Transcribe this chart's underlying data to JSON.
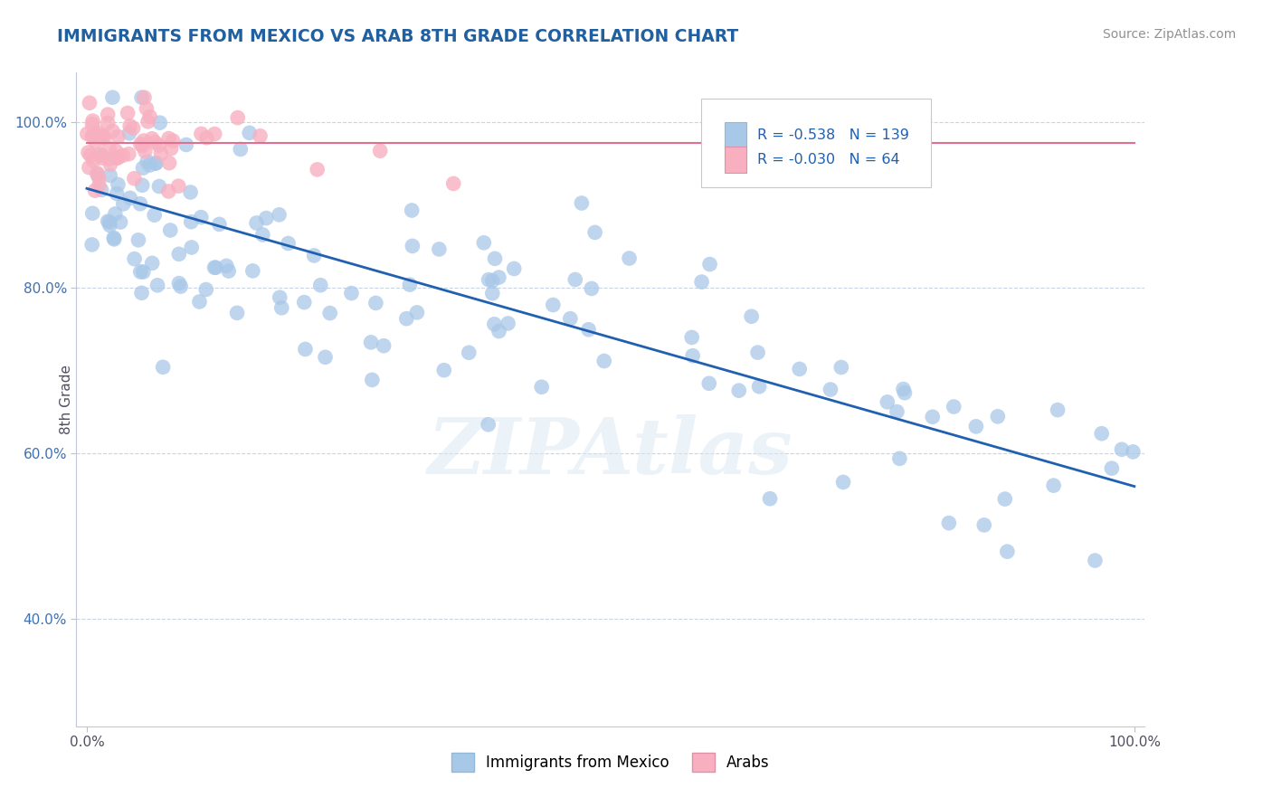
{
  "title": "IMMIGRANTS FROM MEXICO VS ARAB 8TH GRADE CORRELATION CHART",
  "source_text": "Source: ZipAtlas.com",
  "ylabel": "8th Grade",
  "xlim": [
    -0.01,
    1.01
  ],
  "ylim": [
    0.27,
    1.06
  ],
  "xtick_positions": [
    0.0,
    1.0
  ],
  "xtick_labels": [
    "0.0%",
    "100.0%"
  ],
  "ytick_vals": [
    0.4,
    0.6,
    0.8,
    1.0
  ],
  "ytick_labels": [
    "40.0%",
    "60.0%",
    "80.0%",
    "100.0%"
  ],
  "legend_labels": [
    "Immigrants from Mexico",
    "Arabs"
  ],
  "blue_R": -0.538,
  "blue_N": 139,
  "pink_R": -0.03,
  "pink_N": 64,
  "blue_color": "#a8c8e8",
  "blue_edge_color": "#a8c8e8",
  "pink_color": "#f8b0c0",
  "pink_edge_color": "#f8b0c0",
  "blue_line_color": "#2060b0",
  "pink_line_color": "#e07090",
  "marker_size": 12,
  "blue_trendline_x": [
    0.0,
    1.0
  ],
  "blue_trendline_y": [
    0.92,
    0.56
  ],
  "pink_trendline_x": [
    0.0,
    1.0
  ],
  "pink_trendline_y": [
    0.975,
    0.975
  ],
  "bg_color": "#ffffff",
  "grid_color": "#c8d4e4",
  "watermark_text": "ZIPAtlas",
  "title_color": "#2060a0",
  "source_color": "#909090",
  "axis_label_color": "#505060",
  "legend_box_color": "#f0f0f0",
  "legend_border_color": "#c0c0c0",
  "blue_legend_color": "#a8c8e8",
  "pink_legend_color": "#f8b0c0"
}
